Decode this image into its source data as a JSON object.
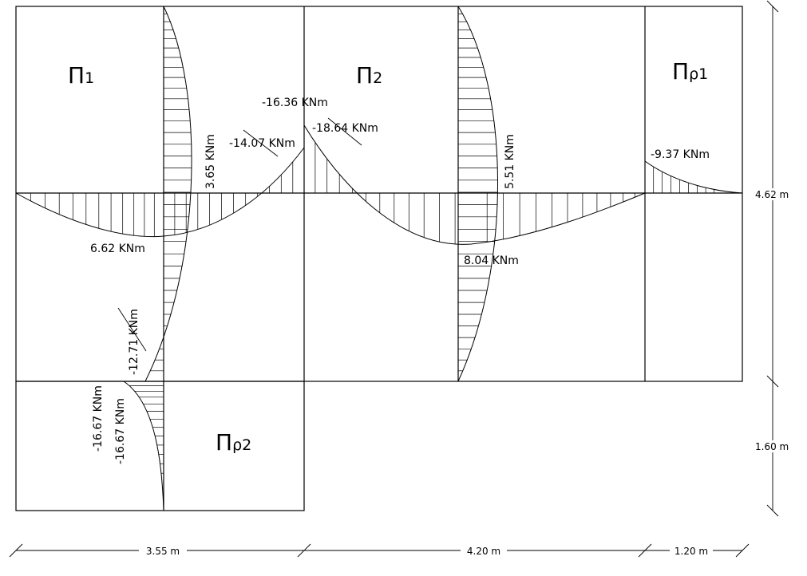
{
  "panels": {
    "p1": {
      "letter": "Π",
      "sub": "1"
    },
    "p2": {
      "letter": "Π",
      "sub": "2"
    },
    "pr1": {
      "letter": "Π",
      "sub": "ρ1"
    },
    "pr2": {
      "letter": "Π",
      "sub": "ρ2"
    }
  },
  "moments": {
    "m_neg_16_36": "-16.36 KNm",
    "m_neg_18_64": "-18.64 KNm",
    "m_neg_14_07": "-14.07 KNm",
    "m_neg_9_37": "-9.37 KNm",
    "m_pos_6_62": "6.62 KNm",
    "m_pos_8_04": "8.04 KNm",
    "m_pos_3_65": "3.65 KNm",
    "m_pos_5_51": "5.51 KNm",
    "m_neg_12_71": "-12.71 KNm",
    "m_neg_16_67_a": "-16.67 KNm",
    "m_neg_16_67_b": "-16.67 KNm"
  },
  "dimensions": {
    "span1": "3.55 m",
    "span2": "4.20 m",
    "span3": "1.20 m",
    "height_top": "4.62 m",
    "height_bottom": "1.60 m"
  }
}
